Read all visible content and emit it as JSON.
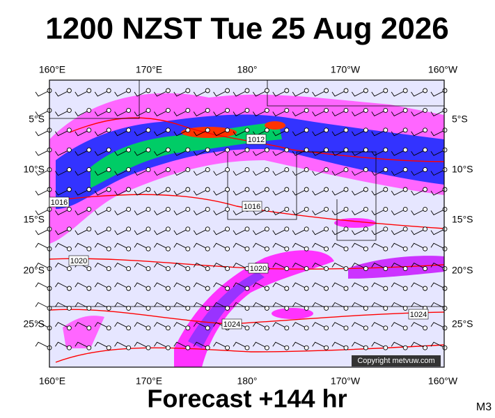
{
  "title": "1200 NZST Tue 25 Aug 2026",
  "top_axis_labels": [
    "160°E",
    "170°E",
    "180°",
    "170°W",
    "160°W"
  ],
  "bottom_axis_labels": [
    "160°E",
    "170°E",
    "180°",
    "170°W",
    "160°W"
  ],
  "left_axis_labels": [
    "5°S",
    "10°S",
    "15°S",
    "20°S",
    "25°S"
  ],
  "right_axis_labels": [
    "5°S",
    "10°S",
    "15°S",
    "20°S",
    "25°S"
  ],
  "isobar_labels": [
    "1012",
    "1016",
    "1016",
    "1020",
    "1020",
    "1024",
    "1024"
  ],
  "copyright": "Copyright metvuw.com",
  "footer": "Forecast +144 hr",
  "model": "M3"
}
